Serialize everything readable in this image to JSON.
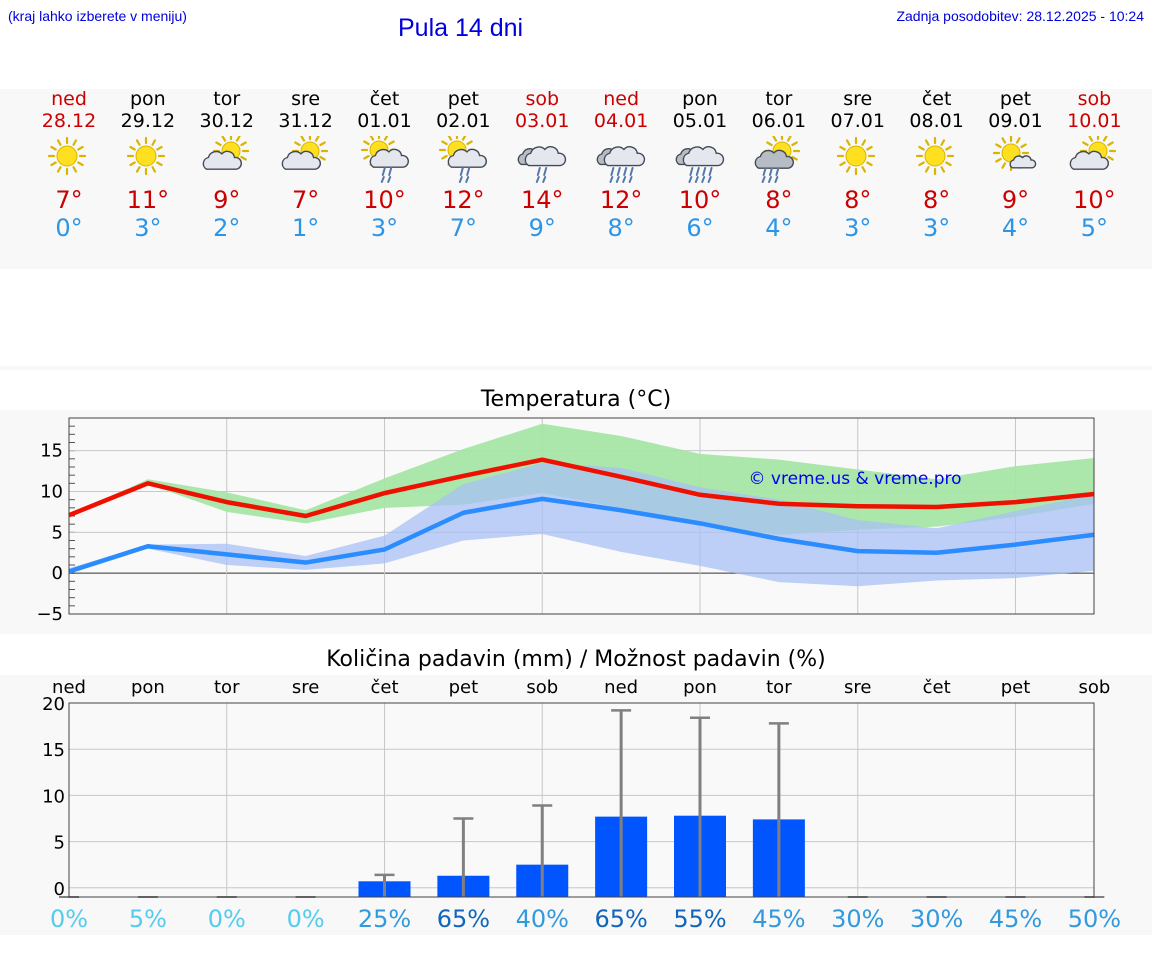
{
  "header": {
    "hint": "(kraj lahko izberete v meniju)",
    "title": "Pula 14 dni",
    "updated": "Zadnja posodobitev: 28.12.2025 - 10:24"
  },
  "days": [
    {
      "name": "ned",
      "date": "28.12",
      "weekend": true,
      "icon": "sun-icon",
      "tmax": "7°",
      "tmin": "0°"
    },
    {
      "name": "pon",
      "date": "29.12",
      "weekend": false,
      "icon": "sun-icon",
      "tmax": "11°",
      "tmin": "3°"
    },
    {
      "name": "tor",
      "date": "30.12",
      "weekend": false,
      "icon": "sun-cloud-icon",
      "tmax": "9°",
      "tmin": "2°"
    },
    {
      "name": "sre",
      "date": "31.12",
      "weekend": false,
      "icon": "sun-cloud-icon",
      "tmax": "7°",
      "tmin": "1°"
    },
    {
      "name": "čet",
      "date": "01.01",
      "weekend": false,
      "icon": "sun-cloud-rain-icon",
      "tmax": "10°",
      "tmin": "3°"
    },
    {
      "name": "pet",
      "date": "02.01",
      "weekend": false,
      "icon": "sun-cloud-rain-icon",
      "tmax": "12°",
      "tmin": "7°"
    },
    {
      "name": "sob",
      "date": "03.01",
      "weekend": true,
      "icon": "cloud-rain-icon",
      "tmax": "14°",
      "tmin": "9°"
    },
    {
      "name": "ned",
      "date": "04.01",
      "weekend": true,
      "icon": "cloud-heavy-rain-icon",
      "tmax": "12°",
      "tmin": "8°"
    },
    {
      "name": "pon",
      "date": "05.01",
      "weekend": false,
      "icon": "cloud-heavy-rain-icon",
      "tmax": "10°",
      "tmin": "6°"
    },
    {
      "name": "tor",
      "date": "06.01",
      "weekend": false,
      "icon": "sun-cloud-heavy-rain-icon",
      "tmax": "8°",
      "tmin": "4°"
    },
    {
      "name": "sre",
      "date": "07.01",
      "weekend": false,
      "icon": "sun-icon",
      "tmax": "8°",
      "tmin": "3°"
    },
    {
      "name": "čet",
      "date": "08.01",
      "weekend": false,
      "icon": "sun-icon",
      "tmax": "8°",
      "tmin": "3°"
    },
    {
      "name": "pet",
      "date": "09.01",
      "weekend": false,
      "icon": "sun-small-cloud-icon",
      "tmax": "9°",
      "tmin": "4°"
    },
    {
      "name": "sob",
      "date": "10.01",
      "weekend": true,
      "icon": "sun-cloud-icon",
      "tmax": "10°",
      "tmin": "5°"
    }
  ],
  "colors": {
    "tmax": "#ee1100",
    "tmin": "#2b8cff",
    "weekend": "#cc0000",
    "maxBand": "#a6e5a6",
    "minBand": "#a8c0f5",
    "overlap": "#7fc0a8",
    "bar": "#0055ff",
    "whisker": "#808080"
  },
  "chart_data": [
    {
      "type": "line",
      "title": "Temperatura (°C)",
      "categories": [
        "28.12",
        "29.12",
        "30.12",
        "31.12",
        "01.01",
        "02.01",
        "03.01",
        "04.01",
        "05.01",
        "06.01",
        "07.01",
        "08.01",
        "09.01",
        "10.01"
      ],
      "ylim": [
        -5,
        19
      ],
      "yticks": [
        -5,
        0,
        5,
        10,
        15
      ],
      "ytick_labels": [
        "−5",
        "0",
        "5",
        "10",
        "15"
      ],
      "watermark": "© vreme.us & vreme.pro",
      "series": [
        {
          "name": "max",
          "values": [
            7.1,
            11.0,
            8.7,
            7.0,
            9.8,
            11.9,
            13.9,
            11.8,
            9.6,
            8.5,
            8.2,
            8.1,
            8.7,
            9.7
          ]
        },
        {
          "name": "min",
          "values": [
            0.2,
            3.3,
            2.3,
            1.3,
            2.9,
            7.4,
            9.1,
            7.7,
            6.1,
            4.2,
            2.7,
            2.5,
            3.5,
            4.7
          ]
        }
      ],
      "bands": [
        {
          "name": "max-range",
          "low": [
            7.1,
            10.9,
            7.5,
            6.1,
            8.0,
            8.4,
            9.8,
            8.0,
            5.9,
            4.7,
            5.3,
            5.7,
            6.9,
            8.5
          ],
          "high": [
            7.1,
            11.5,
            9.9,
            7.7,
            11.6,
            15.2,
            18.3,
            16.8,
            14.6,
            13.9,
            12.7,
            11.5,
            13.1,
            14.1
          ]
        },
        {
          "name": "min-range",
          "low": [
            0.2,
            3.0,
            1.0,
            0.4,
            1.2,
            4.0,
            4.8,
            2.6,
            0.9,
            -1.1,
            -1.6,
            -0.9,
            -0.6,
            0.3
          ],
          "high": [
            0.6,
            3.5,
            3.6,
            2.1,
            4.6,
            10.9,
            13.5,
            12.9,
            10.5,
            9.0,
            6.5,
            5.5,
            7.6,
            9.7
          ]
        }
      ]
    },
    {
      "type": "bar",
      "title": "Količina padavin (mm) / Možnost padavin (%)",
      "categories": [
        "ned",
        "pon",
        "tor",
        "sre",
        "čet",
        "pet",
        "sob",
        "ned",
        "pon",
        "tor",
        "sre",
        "čet",
        "pet",
        "sob"
      ],
      "ylim": [
        -1,
        20
      ],
      "yticks": [
        0,
        5,
        10,
        15,
        20
      ],
      "ytick_labels": [
        "0",
        "5",
        "10",
        "15",
        "20"
      ],
      "values": [
        0,
        0,
        0,
        0,
        0.7,
        1.3,
        2.5,
        7.7,
        7.8,
        7.4,
        0,
        0,
        0,
        0
      ],
      "whisker_max": [
        0,
        0,
        0,
        0,
        1.4,
        7.5,
        8.9,
        19.2,
        18.4,
        17.8,
        0,
        0,
        0,
        0
      ],
      "probability": [
        "0%",
        "5%",
        "0%",
        "0%",
        "25%",
        "65%",
        "40%",
        "65%",
        "55%",
        "45%",
        "30%",
        "30%",
        "45%",
        "50%"
      ],
      "prob_colors": [
        "#55ccee",
        "#55ccee",
        "#55ccee",
        "#55ccee",
        "#3399dd",
        "#1166bb",
        "#3399dd",
        "#1166bb",
        "#1166bb",
        "#3399dd",
        "#3399dd",
        "#3399dd",
        "#3399dd",
        "#3399dd"
      ]
    }
  ]
}
